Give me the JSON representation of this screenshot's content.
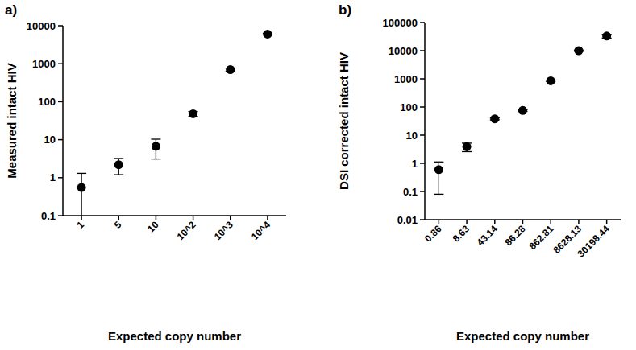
{
  "chart_data": [
    {
      "type": "scatter",
      "annotation": "a)",
      "x_label": "Expected copy number",
      "y_label": "Measured intact  HIV",
      "categories": [
        "1",
        "5",
        "10",
        "10^2",
        "10^3",
        "10^4"
      ],
      "values": [
        0.55,
        2.2,
        6.7,
        48,
        700,
        6000
      ],
      "errors": [
        0.75,
        1.0,
        3.6,
        7,
        60,
        300
      ],
      "ylim": [
        0.1,
        10000
      ],
      "yticks": [
        0.1,
        1,
        10,
        100,
        1000,
        10000
      ],
      "log": "y",
      "grid": false,
      "color": "#000000",
      "marker": "circle"
    },
    {
      "type": "scatter",
      "annotation": "b)",
      "x_label": "Expected copy number",
      "y_label": "DSI corrected intact  HIV",
      "categories": [
        "0.86",
        "8.63",
        "43.14",
        "86.28",
        "862.81",
        "8628.13",
        "30198.44"
      ],
      "values": [
        0.6,
        3.9,
        38,
        75,
        850,
        10000,
        33000
      ],
      "errors": [
        0.52,
        1.3,
        3,
        5,
        50,
        500,
        5000
      ],
      "ylim": [
        0.01,
        100000
      ],
      "yticks": [
        0.01,
        0.1,
        1,
        10,
        100,
        1000,
        10000,
        100000
      ],
      "log": "y",
      "grid": false,
      "color": "#000000",
      "marker": "circle"
    }
  ]
}
